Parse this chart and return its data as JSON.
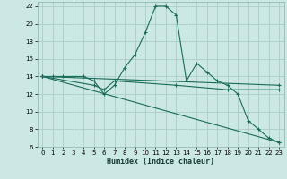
{
  "xlabel": "Humidex (Indice chaleur)",
  "background_color": "#cce8e4",
  "grid_color": "#aacccc",
  "line_color": "#1a6b5a",
  "xlim": [
    -0.5,
    23.5
  ],
  "ylim": [
    6,
    22.5
  ],
  "yticks": [
    6,
    8,
    10,
    12,
    14,
    16,
    18,
    20,
    22
  ],
  "xticks": [
    0,
    1,
    2,
    3,
    4,
    5,
    6,
    7,
    8,
    9,
    10,
    11,
    12,
    13,
    14,
    15,
    16,
    17,
    18,
    19,
    20,
    21,
    22,
    23
  ],
  "series": [
    {
      "x": [
        0,
        1,
        2,
        3,
        4,
        5,
        6,
        7,
        8,
        9,
        10,
        11,
        12,
        13,
        14,
        15,
        16,
        17,
        18,
        19,
        20,
        21,
        22,
        23
      ],
      "y": [
        14,
        14,
        14,
        14,
        14,
        13.5,
        12,
        13,
        15,
        16.5,
        19,
        22,
        22,
        21,
        13.5,
        15.5,
        14.5,
        13.5,
        13,
        12,
        9,
        8,
        7,
        6.5
      ]
    },
    {
      "x": [
        0,
        5,
        6,
        7,
        13,
        18,
        23
      ],
      "y": [
        14,
        13,
        12.5,
        13.5,
        13,
        12.5,
        12.5
      ]
    },
    {
      "x": [
        0,
        23
      ],
      "y": [
        14,
        13
      ]
    },
    {
      "x": [
        0,
        23
      ],
      "y": [
        14,
        6.5
      ]
    }
  ]
}
